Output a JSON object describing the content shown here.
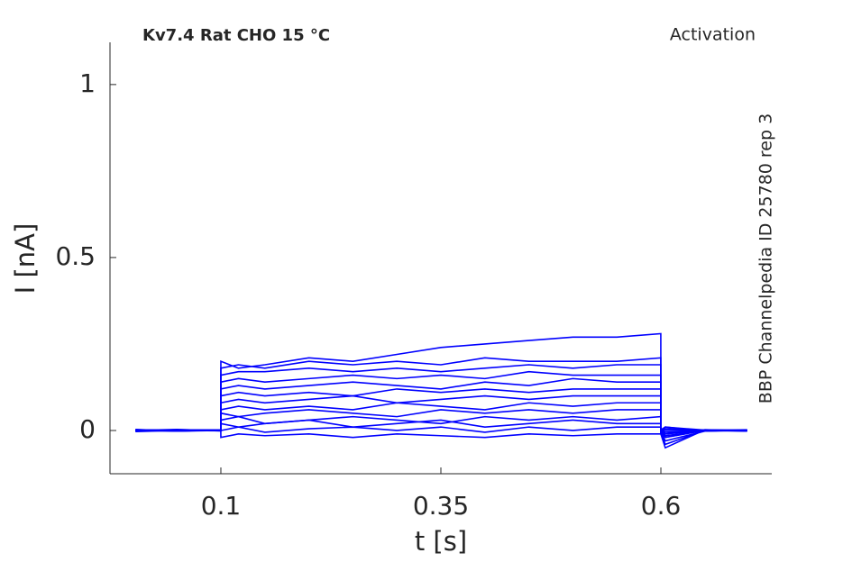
{
  "chart_data": {
    "type": "line",
    "title": "Kv7.4  Rat  CHO  15 °C",
    "annotation": "Activation",
    "side_label": "BBP Channelpedia ID 25780 rep 3",
    "x_label": "t [s]",
    "y_label": "I [nA]",
    "xlim": [
      -0.026,
      0.726
    ],
    "ylim": [
      -0.125,
      1.122
    ],
    "xticks": [
      0.1,
      0.35,
      0.6
    ],
    "yticks": [
      0,
      0.5,
      1
    ],
    "x": [
      0.003,
      0.05,
      0.0999,
      0.1,
      0.12,
      0.15,
      0.2,
      0.25,
      0.3,
      0.35,
      0.4,
      0.45,
      0.5,
      0.55,
      0.5999,
      0.6,
      0.605,
      0.65,
      0.698
    ],
    "series": [
      {
        "color": "#0000ff",
        "values": [
          0,
          0.002,
          0,
          0.2,
          0.18,
          0.19,
          0.21,
          0.2,
          0.22,
          0.24,
          0.25,
          0.26,
          0.27,
          0.27,
          0.28,
          -0.01,
          -0.05,
          0.002,
          0
        ]
      },
      {
        "color": "#0000ff",
        "values": [
          0.003,
          -0.002,
          0.002,
          0.18,
          0.19,
          0.18,
          0.2,
          0.19,
          0.2,
          0.19,
          0.21,
          0.2,
          0.2,
          0.2,
          0.21,
          -0.01,
          -0.04,
          0,
          0.002
        ]
      },
      {
        "color": "#0000ff",
        "values": [
          -0.002,
          0.001,
          0,
          0.16,
          0.17,
          0.17,
          0.18,
          0.17,
          0.18,
          0.17,
          0.18,
          0.19,
          0.18,
          0.19,
          0.19,
          -0.005,
          -0.03,
          -0.002,
          0
        ]
      },
      {
        "color": "#0000ff",
        "values": [
          0.001,
          0,
          0.002,
          0.14,
          0.15,
          0.14,
          0.15,
          0.16,
          0.15,
          0.16,
          0.15,
          0.17,
          0.16,
          0.16,
          0.16,
          0,
          -0.02,
          0.001,
          -0.002
        ]
      },
      {
        "color": "#0000ff",
        "values": [
          0,
          0.003,
          -0.001,
          0.12,
          0.13,
          0.12,
          0.13,
          0.14,
          0.13,
          0.12,
          0.14,
          0.13,
          0.15,
          0.14,
          0.14,
          0,
          -0.02,
          0,
          0.001
        ]
      },
      {
        "color": "#0000ff",
        "values": [
          -0.003,
          0,
          0.001,
          0.1,
          0.11,
          0.1,
          0.11,
          0.1,
          0.12,
          0.11,
          0.12,
          0.11,
          0.12,
          0.12,
          0.12,
          0.003,
          -0.015,
          -0.001,
          0
        ]
      },
      {
        "color": "#0000ff",
        "values": [
          0.002,
          -0.001,
          0,
          0.08,
          0.09,
          0.08,
          0.09,
          0.1,
          0.08,
          0.09,
          0.1,
          0.09,
          0.1,
          0.1,
          0.1,
          0,
          -0.01,
          0.002,
          -0.001
        ]
      },
      {
        "color": "#0000ff",
        "values": [
          0,
          0.002,
          0.001,
          0.06,
          0.07,
          0.06,
          0.07,
          0.06,
          0.08,
          0.07,
          0.06,
          0.08,
          0.07,
          0.08,
          0.08,
          0.002,
          -0.01,
          0,
          0.001
        ]
      },
      {
        "color": "#0000ff",
        "values": [
          0.001,
          -0.002,
          0,
          0.05,
          0.04,
          0.05,
          0.06,
          0.05,
          0.04,
          0.06,
          0.05,
          0.06,
          0.05,
          0.06,
          0.06,
          0,
          -0.005,
          -0.001,
          0
        ]
      },
      {
        "color": "#0000ff",
        "values": [
          -0.001,
          0.001,
          0.002,
          0.03,
          0.04,
          0.02,
          0.03,
          0.04,
          0.03,
          0.02,
          0.04,
          0.03,
          0.04,
          0.03,
          0.04,
          0.001,
          0,
          0.001,
          0
        ]
      },
      {
        "color": "#0000ff",
        "values": [
          0.002,
          0,
          -0.001,
          0.02,
          0.01,
          0.02,
          0.03,
          0.01,
          0.02,
          0.03,
          0.01,
          0.02,
          0.03,
          0.02,
          0.02,
          0,
          0.005,
          0,
          -0.002
        ]
      },
      {
        "color": "#0000ff",
        "values": [
          0,
          -0.002,
          0.001,
          0,
          0.01,
          -0.005,
          0.005,
          0.01,
          0,
          0.01,
          -0.005,
          0.01,
          0,
          0.01,
          0.01,
          0.002,
          0.01,
          0.001,
          0
        ]
      },
      {
        "color": "#0000ff",
        "values": [
          -0.002,
          0.001,
          0,
          -0.02,
          -0.01,
          -0.015,
          -0.01,
          -0.02,
          -0.01,
          -0.015,
          -0.02,
          -0.01,
          -0.015,
          -0.01,
          -0.01,
          0,
          0.01,
          -0.002,
          0.001
        ]
      }
    ]
  }
}
